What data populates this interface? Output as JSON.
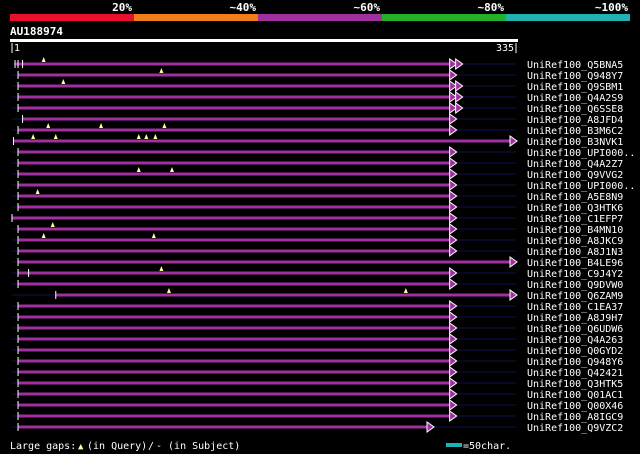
{
  "legend": {
    "tiers": [
      {
        "label": "20%",
        "color": "#e8102c"
      },
      {
        "label": "~40%",
        "color": "#ee7d1a"
      },
      {
        "label": "~60%",
        "color": "#a030a0"
      },
      {
        "label": "~80%",
        "color": "#25b02a"
      },
      {
        "label": "~100%",
        "color": "#20b2b2"
      }
    ]
  },
  "query": {
    "id": "AU188974",
    "length": 335,
    "start_label": "1",
    "end_label": "335"
  },
  "colors": {
    "hit": "#a030a0",
    "guide": "#0e0e50",
    "gap_marker": "#ffff99",
    "ruler": "#ffffff",
    "scale_bar": "#20b2b2"
  },
  "hits": [
    {
      "name": "UniRef100_Q5BNA5",
      "start": 3,
      "end": 295,
      "arrow": "double",
      "gaps": [
        22
      ],
      "subject_gaps": [
        5,
        8
      ]
    },
    {
      "name": "UniRef100_Q948Y7",
      "start": 5,
      "end": 295,
      "arrow": "single",
      "gaps": [
        100
      ],
      "subject_gaps": []
    },
    {
      "name": "UniRef100_Q9SBM1",
      "start": 5,
      "end": 295,
      "arrow": "double",
      "gaps": [
        35
      ],
      "subject_gaps": []
    },
    {
      "name": "UniRef100_Q4A2S9",
      "start": 5,
      "end": 295,
      "arrow": "double",
      "gaps": [],
      "subject_gaps": []
    },
    {
      "name": "UniRef100_Q6SSE8",
      "start": 5,
      "end": 295,
      "arrow": "double",
      "gaps": [],
      "subject_gaps": []
    },
    {
      "name": "UniRef100_A8JFD4",
      "start": 8,
      "end": 295,
      "arrow": "single",
      "gaps": [],
      "subject_gaps": []
    },
    {
      "name": "UniRef100_B3M6C2",
      "start": 5,
      "end": 295,
      "arrow": "single",
      "gaps": [
        25,
        60,
        102
      ],
      "subject_gaps": []
    },
    {
      "name": "UniRef100_B3NVK1",
      "start": 2,
      "end": 335,
      "arrow": "single",
      "gaps": [
        15,
        30,
        85,
        90,
        96
      ],
      "subject_gaps": []
    },
    {
      "name": "UniRef100_UPI000..",
      "start": 5,
      "end": 295,
      "arrow": "single",
      "gaps": [],
      "subject_gaps": []
    },
    {
      "name": "UniRef100_Q4A2Z7",
      "start": 5,
      "end": 295,
      "arrow": "single",
      "gaps": [],
      "subject_gaps": []
    },
    {
      "name": "UniRef100_Q9VVG2",
      "start": 5,
      "end": 295,
      "arrow": "single",
      "gaps": [
        85,
        107
      ],
      "subject_gaps": []
    },
    {
      "name": "UniRef100_UPI000..",
      "start": 5,
      "end": 295,
      "arrow": "single",
      "gaps": [],
      "subject_gaps": []
    },
    {
      "name": "UniRef100_A5E8N9",
      "start": 5,
      "end": 295,
      "arrow": "single",
      "gaps": [
        18
      ],
      "subject_gaps": []
    },
    {
      "name": "UniRef100_Q3HTK6",
      "start": 5,
      "end": 295,
      "arrow": "single",
      "gaps": [],
      "subject_gaps": []
    },
    {
      "name": "UniRef100_C1EFP7",
      "start": 1,
      "end": 295,
      "arrow": "single",
      "gaps": [],
      "subject_gaps": []
    },
    {
      "name": "UniRef100_B4MN10",
      "start": 5,
      "end": 295,
      "arrow": "single",
      "gaps": [
        28
      ],
      "subject_gaps": []
    },
    {
      "name": "UniRef100_A8JKC9",
      "start": 5,
      "end": 295,
      "arrow": "single",
      "gaps": [
        22,
        95
      ],
      "subject_gaps": []
    },
    {
      "name": "UniRef100_A8J1N3",
      "start": 5,
      "end": 295,
      "arrow": "single",
      "gaps": [],
      "subject_gaps": []
    },
    {
      "name": "UniRef100_B4LE96",
      "start": 5,
      "end": 335,
      "arrow": "single",
      "gaps": [],
      "subject_gaps": []
    },
    {
      "name": "UniRef100_C9J4Y2",
      "start": 5,
      "end": 295,
      "arrow": "single",
      "gaps": [
        100
      ],
      "subject_gaps": [
        12
      ]
    },
    {
      "name": "UniRef100_Q9DVW0",
      "start": 5,
      "end": 295,
      "arrow": "single",
      "gaps": [],
      "subject_gaps": []
    },
    {
      "name": "UniRef100_Q6ZAM9",
      "start": 30,
      "end": 335,
      "arrow": "single",
      "gaps": [
        105,
        262
      ],
      "subject_gaps": []
    },
    {
      "name": "UniRef100_C1EA37",
      "start": 5,
      "end": 295,
      "arrow": "single",
      "gaps": [],
      "subject_gaps": []
    },
    {
      "name": "UniRef100_A8J9H7",
      "start": 5,
      "end": 295,
      "arrow": "single",
      "gaps": [],
      "subject_gaps": []
    },
    {
      "name": "UniRef100_Q6UDW6",
      "start": 5,
      "end": 295,
      "arrow": "single",
      "gaps": [],
      "subject_gaps": []
    },
    {
      "name": "UniRef100_Q4A263",
      "start": 5,
      "end": 295,
      "arrow": "single",
      "gaps": [],
      "subject_gaps": []
    },
    {
      "name": "UniRef100_Q0GYD2",
      "start": 5,
      "end": 295,
      "arrow": "single",
      "gaps": [],
      "subject_gaps": []
    },
    {
      "name": "UniRef100_Q948Y6",
      "start": 5,
      "end": 295,
      "arrow": "single",
      "gaps": [],
      "subject_gaps": []
    },
    {
      "name": "UniRef100_Q42421",
      "start": 5,
      "end": 295,
      "arrow": "single",
      "gaps": [],
      "subject_gaps": []
    },
    {
      "name": "UniRef100_Q3HTK5",
      "start": 5,
      "end": 295,
      "arrow": "single",
      "gaps": [],
      "subject_gaps": []
    },
    {
      "name": "UniRef100_Q01AC1",
      "start": 5,
      "end": 295,
      "arrow": "single",
      "gaps": [],
      "subject_gaps": []
    },
    {
      "name": "UniRef100_Q00X46",
      "start": 5,
      "end": 295,
      "arrow": "single",
      "gaps": [],
      "subject_gaps": []
    },
    {
      "name": "UniRef100_A8IGC9",
      "start": 5,
      "end": 295,
      "arrow": "single",
      "gaps": [],
      "subject_gaps": []
    },
    {
      "name": "UniRef100_Q9VZC2",
      "start": 5,
      "end": 280,
      "arrow": "single",
      "gaps": [],
      "subject_gaps": []
    }
  ],
  "footer": {
    "gaps_label": "Large gaps:",
    "query_marker": "▲",
    "query_label": "(in Query)",
    "subject_marker": "/",
    "subject_label": "- (in Subject)",
    "scale_label": "=50char."
  }
}
